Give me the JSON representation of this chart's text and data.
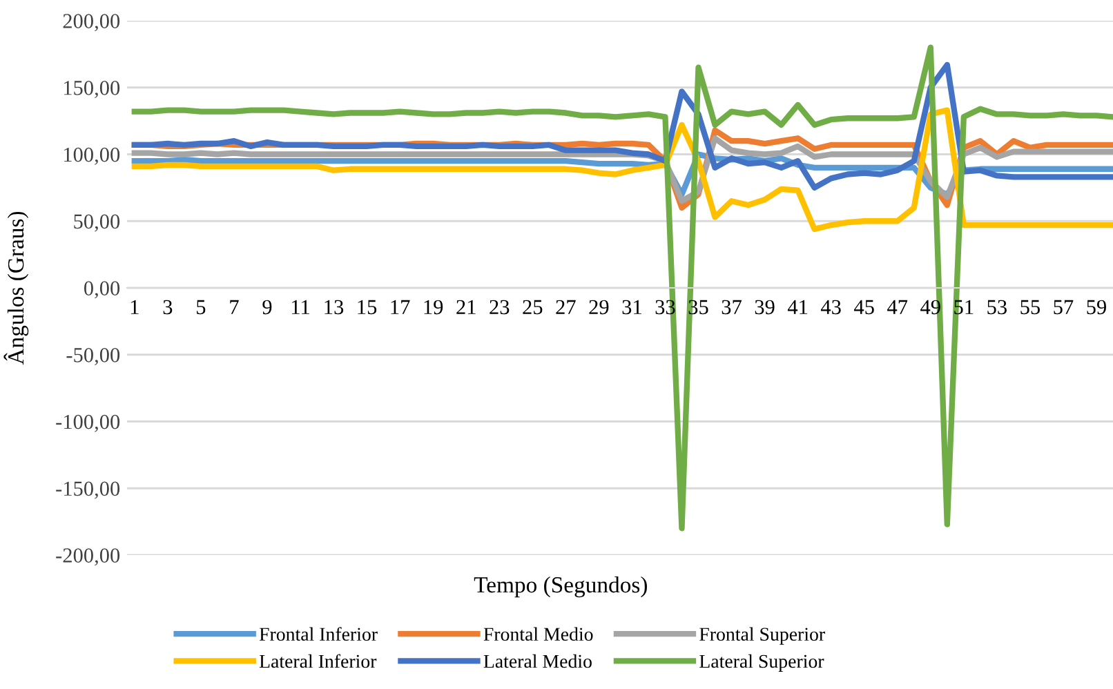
{
  "chart_data": {
    "type": "line",
    "xlabel": "Tempo (Segundos)",
    "ylabel": "Ângulos (Graus)",
    "categories": [
      "1",
      null,
      "3",
      null,
      "5",
      null,
      "7",
      null,
      "9",
      null,
      "11",
      null,
      "13",
      null,
      "15",
      null,
      "17",
      null,
      "19",
      null,
      "21",
      null,
      "23",
      null,
      "25",
      null,
      "27",
      null,
      "29",
      null,
      "31",
      null,
      "33",
      null,
      "35",
      null,
      "37",
      null,
      "39",
      null,
      "41",
      null,
      "43",
      null,
      "45",
      null,
      "47",
      null,
      "49",
      null,
      "51",
      null,
      "53",
      null,
      "55",
      null,
      "57",
      null,
      "59",
      null
    ],
    "ylim": [
      -200,
      200
    ],
    "yticks": [
      {
        "value": -200,
        "label": "-200,00"
      },
      {
        "value": -150,
        "label": "-150,00"
      },
      {
        "value": -100,
        "label": "-100,00"
      },
      {
        "value": -50,
        "label": "-50,00"
      },
      {
        "value": 0,
        "label": "0,00"
      },
      {
        "value": 50,
        "label": "50,00"
      },
      {
        "value": 100,
        "label": "100,00"
      },
      {
        "value": 150,
        "label": "150,00"
      },
      {
        "value": 200,
        "label": "200,00"
      }
    ],
    "grid": "y",
    "legend": "bottom",
    "marker": "none",
    "line_style": "solid",
    "series": [
      {
        "name": "Frontal Inferior",
        "color": "#5b9bd5",
        "values": [
          95,
          95,
          95,
          96,
          95,
          95,
          95,
          95,
          95,
          95,
          95,
          95,
          95,
          95,
          95,
          95,
          95,
          95,
          95,
          95,
          95,
          95,
          95,
          95,
          95,
          95,
          95,
          94,
          93,
          93,
          93,
          92,
          93,
          70,
          100,
          97,
          96,
          97,
          95,
          97,
          92,
          90,
          90,
          90,
          90,
          90,
          90,
          90,
          75,
          70,
          88,
          89,
          89,
          89,
          89,
          89,
          89,
          89,
          89,
          89
        ]
      },
      {
        "name": "Frontal Medio",
        "color": "#ed7d31",
        "values": [
          107,
          107,
          106,
          106,
          107,
          108,
          107,
          107,
          107,
          107,
          107,
          107,
          107,
          107,
          107,
          107,
          107,
          108,
          108,
          107,
          107,
          107,
          107,
          108,
          107,
          107,
          107,
          108,
          107,
          108,
          108,
          107,
          95,
          60,
          70,
          118,
          110,
          110,
          108,
          110,
          112,
          104,
          107,
          107,
          107,
          107,
          107,
          107,
          80,
          62,
          105,
          110,
          100,
          110,
          105,
          107,
          107,
          107,
          107,
          107
        ]
      },
      {
        "name": "Frontal Superior",
        "color": "#a5a5a5",
        "values": [
          101,
          101,
          100,
          100,
          101,
          100,
          101,
          100,
          100,
          100,
          100,
          100,
          100,
          100,
          100,
          100,
          100,
          100,
          100,
          100,
          100,
          100,
          100,
          100,
          100,
          100,
          100,
          100,
          100,
          100,
          100,
          99,
          95,
          65,
          72,
          112,
          103,
          101,
          100,
          101,
          106,
          98,
          100,
          100,
          100,
          100,
          100,
          100,
          80,
          68,
          100,
          105,
          98,
          102,
          102,
          102,
          102,
          102,
          102,
          102
        ]
      },
      {
        "name": "Lateral Inferior",
        "color": "#ffc000",
        "values": [
          91,
          91,
          92,
          92,
          91,
          91,
          91,
          91,
          91,
          91,
          91,
          91,
          88,
          89,
          89,
          89,
          89,
          89,
          89,
          89,
          89,
          89,
          89,
          89,
          89,
          89,
          89,
          88,
          86,
          85,
          88,
          90,
          92,
          122,
          95,
          53,
          65,
          62,
          66,
          74,
          73,
          44,
          47,
          49,
          50,
          50,
          50,
          60,
          130,
          133,
          47,
          47,
          47,
          47,
          47,
          47,
          47,
          47,
          47,
          47
        ]
      },
      {
        "name": "Lateral Medio",
        "color": "#4472c4",
        "values": [
          107,
          107,
          108,
          107,
          108,
          108,
          110,
          106,
          109,
          107,
          107,
          107,
          106,
          106,
          106,
          107,
          107,
          106,
          106,
          106,
          106,
          107,
          106,
          106,
          106,
          107,
          103,
          103,
          103,
          103,
          101,
          100,
          95,
          147,
          130,
          90,
          97,
          93,
          94,
          90,
          95,
          75,
          82,
          85,
          86,
          85,
          88,
          95,
          150,
          167,
          87,
          88,
          84,
          83,
          83,
          83,
          83,
          83,
          83,
          83
        ]
      },
      {
        "name": "Lateral Superior",
        "color": "#70ad47",
        "values": [
          132,
          132,
          133,
          133,
          132,
          132,
          132,
          133,
          133,
          133,
          132,
          131,
          130,
          131,
          131,
          131,
          132,
          131,
          130,
          130,
          131,
          131,
          132,
          131,
          132,
          132,
          131,
          129,
          129,
          128,
          129,
          130,
          128,
          -180,
          165,
          122,
          132,
          130,
          132,
          122,
          137,
          122,
          126,
          127,
          127,
          127,
          127,
          128,
          180,
          -177,
          128,
          134,
          130,
          130,
          129,
          129,
          130,
          129,
          129,
          128
        ]
      }
    ]
  }
}
